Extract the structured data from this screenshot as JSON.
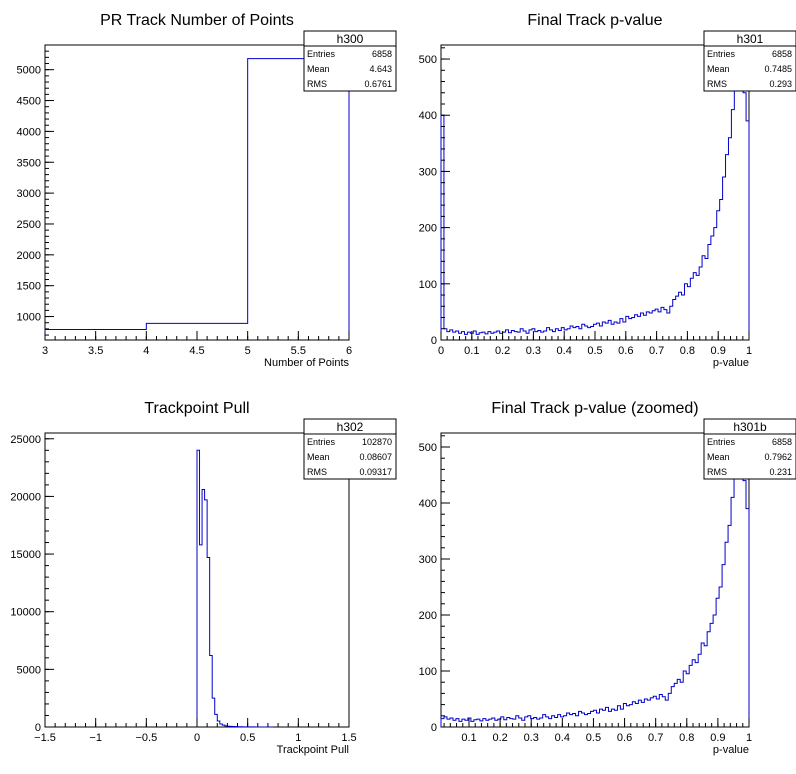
{
  "chart_data": [
    {
      "type": "bar",
      "name": "h300",
      "title": "PR Track Number of Points",
      "xlabel": "Number of Points",
      "xlim": [
        3,
        6
      ],
      "ylim": [
        620,
        5400
      ],
      "x_ticks": [
        "3",
        "3.5",
        "4",
        "4.5",
        "5",
        "5.5",
        "6"
      ],
      "y_ticks": [
        "1000",
        "1500",
        "2000",
        "2500",
        "3000",
        "3500",
        "4000",
        "4500",
        "5000"
      ],
      "bin_edges": [
        3,
        4,
        5,
        6
      ],
      "values": [
        790,
        890,
        5180
      ],
      "stats": {
        "entries_label": "Entries",
        "entries": "6858",
        "mean_label": "Mean",
        "mean": "4.643",
        "rms_label": "RMS",
        "rms": "0.6761"
      }
    },
    {
      "type": "bar",
      "name": "h301",
      "title": "Final Track p-value",
      "xlabel": "p-value",
      "xlim": [
        0,
        1
      ],
      "ylim": [
        0,
        525
      ],
      "x_ticks": [
        "0",
        "0.1",
        "0.2",
        "0.3",
        "0.4",
        "0.5",
        "0.6",
        "0.7",
        "0.8",
        "0.9",
        "1"
      ],
      "y_ticks": [
        "0",
        "100",
        "200",
        "300",
        "400",
        "500"
      ],
      "bin_edges_range": [
        0,
        1
      ],
      "values": [
        400,
        20,
        15,
        18,
        14,
        16,
        12,
        15,
        10,
        14,
        12,
        16,
        10,
        13,
        14,
        11,
        15,
        12,
        14,
        16,
        12,
        14,
        18,
        13,
        17,
        15,
        14,
        20,
        16,
        12,
        18,
        20,
        15,
        17,
        14,
        16,
        22,
        18,
        15,
        20,
        17,
        22,
        18,
        20,
        25,
        22,
        24,
        20,
        28,
        25,
        22,
        24,
        28,
        30,
        25,
        32,
        30,
        35,
        28,
        32,
        30,
        38,
        32,
        42,
        38,
        40,
        45,
        42,
        48,
        44,
        50,
        48,
        52,
        55,
        50,
        58,
        54,
        48,
        60,
        72,
        78,
        85,
        80,
        100,
        95,
        110,
        120,
        115,
        130,
        150,
        145,
        170,
        185,
        200,
        230,
        250,
        290,
        330,
        360,
        410,
        470,
        480,
        510,
        440,
        390
      ],
      "stats": {
        "entries_label": "Entries",
        "entries": "6858",
        "mean_label": "Mean",
        "mean": "0.7485",
        "rms_label": "RMS",
        "rms": "0.293"
      }
    },
    {
      "type": "bar",
      "name": "h302",
      "title": "Trackpoint Pull",
      "xlabel": "Trackpoint Pull",
      "xlim": [
        -1.5,
        1.5
      ],
      "ylim": [
        0,
        25500
      ],
      "x_ticks": [
        "−1.5",
        "−1",
        "−0.5",
        "0",
        "0.5",
        "1",
        "1.5"
      ],
      "y_ticks": [
        "0",
        "5000",
        "10000",
        "15000",
        "20000",
        "25000"
      ],
      "bin_edges_range": [
        0,
        0.75
      ],
      "values": [
        24000,
        15800,
        20600,
        19700,
        14700,
        6200,
        2500,
        1100,
        520,
        260,
        160,
        100,
        70,
        50,
        40,
        30,
        25,
        20,
        15,
        12,
        10,
        8,
        6,
        5,
        4,
        3,
        3,
        2,
        2,
        1
      ],
      "stats": {
        "entries_label": "Entries",
        "entries": "102870",
        "mean_label": "Mean",
        "mean": "0.08607",
        "rms_label": "RMS",
        "rms": "0.09317"
      }
    },
    {
      "type": "bar",
      "name": "h301b",
      "title": "Final Track p-value (zoomed)",
      "xlabel": "p-value",
      "xlim": [
        0.01,
        1
      ],
      "ylim": [
        0,
        525
      ],
      "x_ticks": [
        "0.1",
        "0.2",
        "0.3",
        "0.4",
        "0.5",
        "0.6",
        "0.7",
        "0.8",
        "0.9",
        "1"
      ],
      "y_ticks": [
        "0",
        "100",
        "200",
        "300",
        "400",
        "500"
      ],
      "bin_edges_range": [
        0.01,
        1
      ],
      "values": [
        15,
        18,
        14,
        16,
        12,
        15,
        10,
        14,
        12,
        16,
        10,
        13,
        14,
        11,
        15,
        12,
        14,
        16,
        12,
        14,
        18,
        13,
        17,
        15,
        14,
        20,
        16,
        12,
        18,
        20,
        15,
        17,
        14,
        16,
        22,
        18,
        15,
        20,
        17,
        22,
        18,
        20,
        25,
        22,
        24,
        20,
        28,
        25,
        22,
        24,
        28,
        30,
        25,
        32,
        30,
        35,
        28,
        32,
        30,
        38,
        32,
        42,
        38,
        40,
        45,
        42,
        48,
        44,
        50,
        48,
        52,
        55,
        50,
        58,
        54,
        48,
        60,
        72,
        78,
        85,
        80,
        100,
        95,
        110,
        120,
        115,
        130,
        150,
        145,
        170,
        185,
        200,
        230,
        250,
        290,
        330,
        360,
        410,
        470,
        480,
        510,
        440,
        390
      ],
      "stats": {
        "entries_label": "Entries",
        "entries": "6858",
        "mean_label": "Mean",
        "mean": "0.7962",
        "rms_label": "RMS",
        "rms": "0.231"
      }
    }
  ]
}
